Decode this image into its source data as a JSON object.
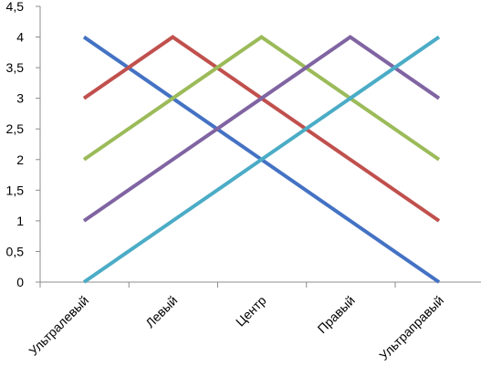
{
  "chart_data": {
    "type": "line",
    "categories": [
      "Ультралевый",
      "Левый",
      "Центр",
      "Правый",
      "Ультраправый"
    ],
    "ylim": [
      0,
      4.5
    ],
    "yticks": [
      "0",
      "0,5",
      "1",
      "1,5",
      "2",
      "2,5",
      "3",
      "3,5",
      "4",
      "4,5"
    ],
    "grid": false,
    "legend": "none",
    "series": [
      {
        "color": "#4472C4",
        "values": [
          4,
          3,
          2,
          1,
          0
        ]
      },
      {
        "color": "#C0504D",
        "values": [
          3,
          4,
          3,
          2,
          1
        ]
      },
      {
        "color": "#9BBB59",
        "values": [
          2,
          3,
          4,
          3,
          2
        ]
      },
      {
        "color": "#8064A2",
        "values": [
          1,
          2,
          3,
          4,
          3
        ]
      },
      {
        "color": "#4BACC6",
        "values": [
          0,
          1,
          2,
          3,
          4
        ]
      }
    ]
  }
}
